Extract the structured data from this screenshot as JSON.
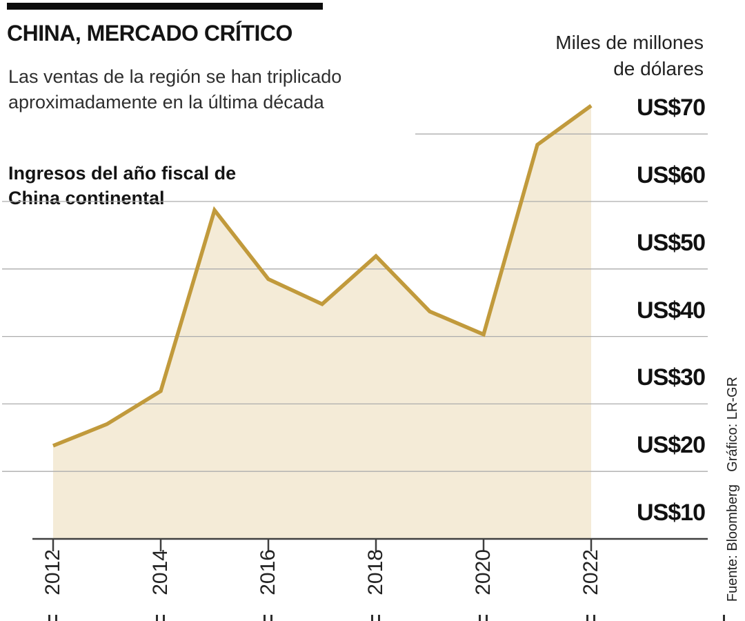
{
  "header": {
    "title": "CHINA, MERCADO CRÍTICO",
    "subtitle_line1": "Las ventas de la región se han triplicado",
    "subtitle_line2": "aproximadamente en la última década"
  },
  "annotation": {
    "line1": "Ingresos del año fiscal de",
    "line2": "China continental"
  },
  "unit_label": {
    "line1": "Miles de millones",
    "line2": "de dólares"
  },
  "credits": {
    "graphic": "Gráfico: LR-GR",
    "source": "Fuente: Bloomberg"
  },
  "colors": {
    "line": "#C19A3C",
    "fill": "#F4EBD7",
    "grid": "#ACACAC",
    "axis": "#3F3F3F",
    "marks": "#2E2E2E"
  },
  "chart_data": {
    "type": "area",
    "title": "CHINA, MERCADO CRÍTICO",
    "subtitle": "Las ventas de la región se han triplicado aproximadamente en la última década",
    "series_name": "Ingresos del año fiscal de China continental",
    "unit": "Miles de millones de dólares",
    "source": "Bloomberg",
    "x": [
      2012,
      2013,
      2014,
      2015,
      2016,
      2017,
      2018,
      2019,
      2020,
      2021,
      2022
    ],
    "values": [
      23.8,
      27.0,
      31.9,
      58.7,
      48.5,
      44.8,
      51.9,
      43.7,
      40.3,
      68.4,
      74.2
    ],
    "xticks": [
      2012,
      2014,
      2016,
      2018,
      2020,
      2022
    ],
    "yticks": [
      {
        "label": "US$10",
        "value": 10
      },
      {
        "label": "US$20",
        "value": 20
      },
      {
        "label": "US$30",
        "value": 30
      },
      {
        "label": "US$40",
        "value": 40
      },
      {
        "label": "US$50",
        "value": 50
      },
      {
        "label": "US$60",
        "value": 60
      },
      {
        "label": "US$70",
        "value": 70
      }
    ],
    "ylim": [
      10,
      76
    ],
    "grid": true,
    "legend": false
  }
}
